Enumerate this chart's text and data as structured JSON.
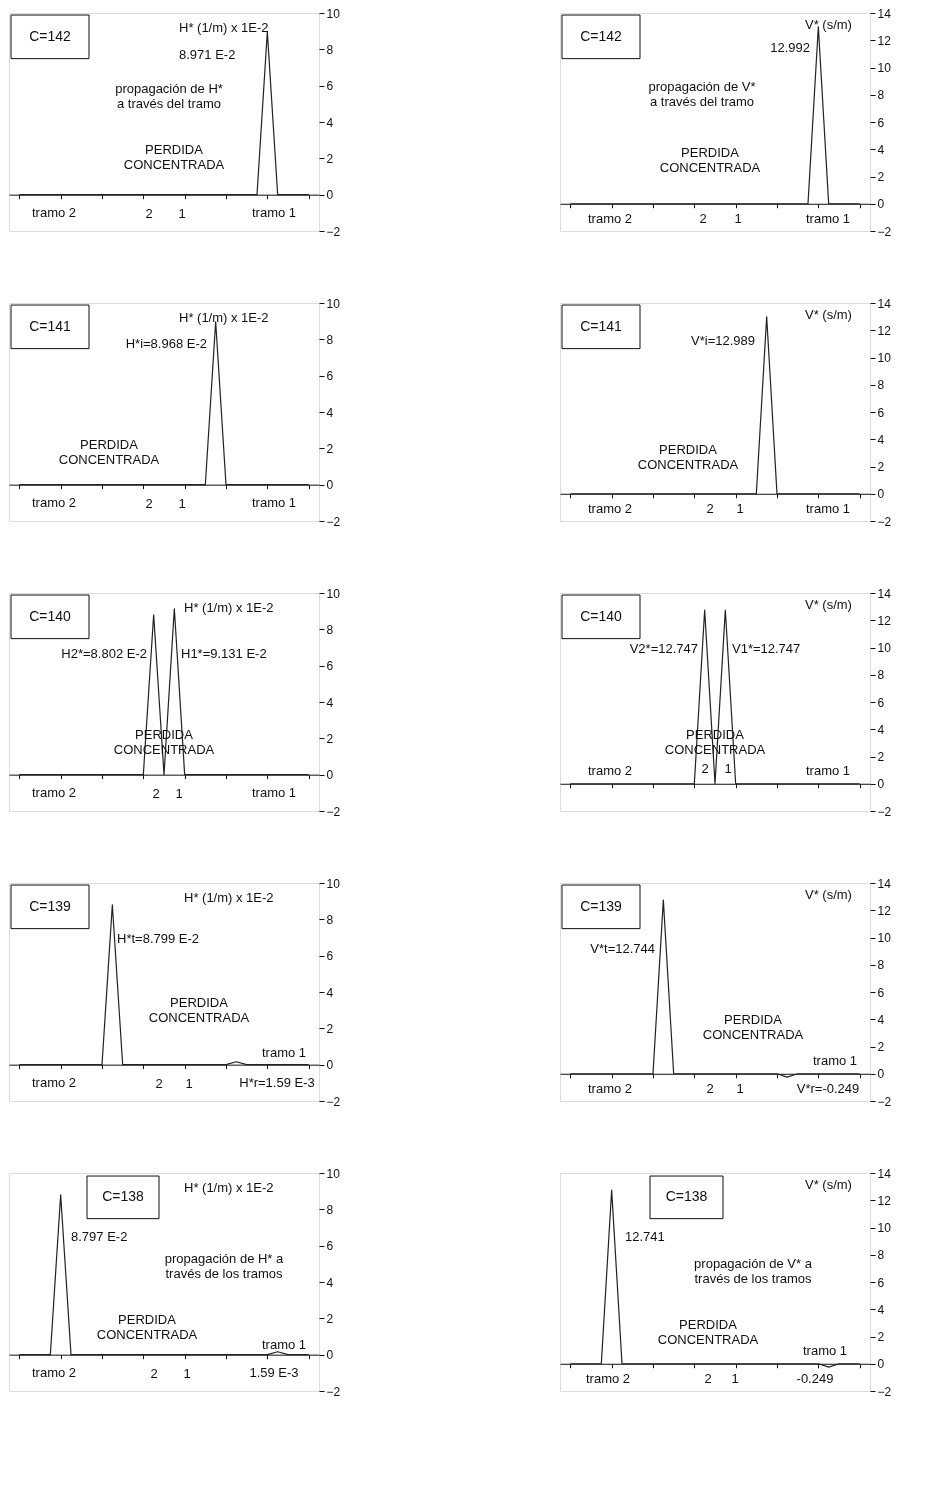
{
  "chart_data": [
    {
      "type": "line",
      "title": "C=142",
      "ylabel": "H* (1/m) x 1E-2",
      "ylim": [
        -2,
        10
      ],
      "yticks": [
        -2,
        0,
        2,
        4,
        6,
        8,
        10
      ],
      "tick_labels": "y",
      "categories": [
        null,
        null,
        null,
        null,
        null,
        null,
        null,
        null,
        null,
        null,
        null,
        null,
        null,
        null,
        null,
        null,
        null,
        null,
        null,
        null,
        null,
        null,
        null,
        null,
        null,
        null,
        null,
        null,
        null
      ],
      "series": [
        {
          "color": "#222222",
          "values": [
            0,
            0,
            0,
            0,
            0,
            0,
            0,
            0,
            0,
            0,
            0,
            0,
            0,
            0,
            0,
            0,
            0,
            0,
            0,
            0,
            0,
            0,
            0,
            0,
            8.971,
            0,
            0,
            0,
            0
          ]
        }
      ],
      "annotations": [
        "8.971 E-2",
        "propagación de H*\na través del tramo",
        "PERDIDA\nCONCENTRADA",
        "tramo 2",
        "2",
        "1",
        "tramo 1"
      ]
    },
    {
      "type": "line",
      "title": "C=142",
      "ylabel": "V* (s/m)",
      "ylim": [
        -2,
        14
      ],
      "yticks": [
        -2,
        0,
        2,
        4,
        6,
        8,
        10,
        12,
        14
      ],
      "tick_labels": "y",
      "categories": [
        null,
        null,
        null,
        null,
        null,
        null,
        null,
        null,
        null,
        null,
        null,
        null,
        null,
        null,
        null,
        null,
        null,
        null,
        null,
        null,
        null,
        null,
        null,
        null,
        null,
        null,
        null,
        null,
        null
      ],
      "series": [
        {
          "color": "#222222",
          "values": [
            0,
            0,
            0,
            0,
            0,
            0,
            0,
            0,
            0,
            0,
            0,
            0,
            0,
            0,
            0,
            0,
            0,
            0,
            0,
            0,
            0,
            0,
            0,
            0,
            12.992,
            0,
            0,
            0,
            0
          ]
        }
      ],
      "annotations": [
        "12.992",
        "propagación de V*\na través del tramo",
        "PERDIDA\nCONCENTRADA",
        "tramo 2",
        "2",
        "1",
        "tramo 1"
      ]
    },
    {
      "type": "line",
      "title": "C=141",
      "ylabel": "H* (1/m) x 1E-2",
      "ylim": [
        -2,
        10
      ],
      "yticks": [
        -2,
        0,
        2,
        4,
        6,
        8,
        10
      ],
      "tick_labels": "y",
      "categories": [
        null,
        null,
        null,
        null,
        null,
        null,
        null,
        null,
        null,
        null,
        null,
        null,
        null,
        null,
        null,
        null,
        null,
        null,
        null,
        null,
        null,
        null,
        null,
        null,
        null,
        null,
        null,
        null,
        null
      ],
      "series": [
        {
          "color": "#222222",
          "values": [
            0,
            0,
            0,
            0,
            0,
            0,
            0,
            0,
            0,
            0,
            0,
            0,
            0,
            0,
            0,
            0,
            0,
            0,
            0,
            8.968,
            0,
            0,
            0,
            0,
            0,
            0,
            0,
            0,
            0
          ]
        }
      ],
      "annotations": [
        "H*i=8.968 E-2",
        "PERDIDA\nCONCENTRADA",
        "tramo 2",
        "2",
        "1",
        "tramo 1"
      ]
    },
    {
      "type": "line",
      "title": "C=141",
      "ylabel": "V* (s/m)",
      "ylim": [
        -2,
        14
      ],
      "yticks": [
        -2,
        0,
        2,
        4,
        6,
        8,
        10,
        12,
        14
      ],
      "tick_labels": "y",
      "categories": [
        null,
        null,
        null,
        null,
        null,
        null,
        null,
        null,
        null,
        null,
        null,
        null,
        null,
        null,
        null,
        null,
        null,
        null,
        null,
        null,
        null,
        null,
        null,
        null,
        null,
        null,
        null,
        null,
        null
      ],
      "series": [
        {
          "color": "#222222",
          "values": [
            0,
            0,
            0,
            0,
            0,
            0,
            0,
            0,
            0,
            0,
            0,
            0,
            0,
            0,
            0,
            0,
            0,
            0,
            0,
            12.989,
            0,
            0,
            0,
            0,
            0,
            0,
            0,
            0,
            0
          ]
        }
      ],
      "annotations": [
        "V*i=12.989",
        "PERDIDA\nCONCENTRADA",
        "tramo 2",
        "2",
        "1",
        "tramo 1"
      ]
    },
    {
      "type": "line",
      "title": "C=140",
      "ylabel": "H* (1/m) x 1E-2",
      "ylim": [
        -2,
        10
      ],
      "yticks": [
        -2,
        0,
        2,
        4,
        6,
        8,
        10
      ],
      "tick_labels": "y",
      "categories": [
        null,
        null,
        null,
        null,
        null,
        null,
        null,
        null,
        null,
        null,
        null,
        null,
        null,
        null,
        null,
        null,
        null,
        null,
        null,
        null,
        null,
        null,
        null,
        null,
        null,
        null,
        null,
        null,
        null
      ],
      "series": [
        {
          "color": "#222222",
          "values": [
            0,
            0,
            0,
            0,
            0,
            0,
            0,
            0,
            0,
            0,
            0,
            0,
            0,
            8.802,
            0,
            9.131,
            0,
            0,
            0,
            0,
            0,
            0,
            0,
            0,
            0,
            0,
            0,
            0,
            0
          ]
        }
      ],
      "annotations": [
        "H2*=8.802 E-2",
        "H1*=9.131 E-2",
        "PERDIDA\nCONCENTRADA",
        "tramo 2",
        "2",
        "1",
        "tramo 1"
      ]
    },
    {
      "type": "line",
      "title": "C=140",
      "ylabel": "V* (s/m)",
      "ylim": [
        -2,
        14
      ],
      "yticks": [
        -2,
        0,
        2,
        4,
        6,
        8,
        10,
        12,
        14
      ],
      "tick_labels": "y",
      "categories": [
        null,
        null,
        null,
        null,
        null,
        null,
        null,
        null,
        null,
        null,
        null,
        null,
        null,
        null,
        null,
        null,
        null,
        null,
        null,
        null,
        null,
        null,
        null,
        null,
        null,
        null,
        null,
        null,
        null
      ],
      "series": [
        {
          "color": "#222222",
          "values": [
            0,
            0,
            0,
            0,
            0,
            0,
            0,
            0,
            0,
            0,
            0,
            0,
            0,
            12.747,
            0,
            12.747,
            0,
            0,
            0,
            0,
            0,
            0,
            0,
            0,
            0,
            0,
            0,
            0,
            0
          ]
        }
      ],
      "annotations": [
        "V2*=12.747",
        "V1*=12.747",
        "PERDIDA\nCONCENTRADA",
        "tramo 2",
        "2",
        "1",
        "tramo 1"
      ]
    },
    {
      "type": "line",
      "title": "C=139",
      "ylabel": "H* (1/m) x 1E-2",
      "ylim": [
        -2,
        10
      ],
      "yticks": [
        -2,
        0,
        2,
        4,
        6,
        8,
        10
      ],
      "tick_labels": "y",
      "categories": [
        null,
        null,
        null,
        null,
        null,
        null,
        null,
        null,
        null,
        null,
        null,
        null,
        null,
        null,
        null,
        null,
        null,
        null,
        null,
        null,
        null,
        null,
        null,
        null,
        null,
        null,
        null,
        null,
        null
      ],
      "series": [
        {
          "color": "#222222",
          "values": [
            0,
            0,
            0,
            0,
            0,
            0,
            0,
            0,
            0,
            8.799,
            0,
            0,
            0,
            0,
            0,
            0,
            0,
            0,
            0,
            0,
            0,
            0.159,
            0,
            0,
            0,
            0,
            0,
            0,
            0
          ]
        }
      ],
      "annotations": [
        "H*t=8.799 E-2",
        "PERDIDA\nCONCENTRADA",
        "tramo 1",
        "H*r=1.59 E-3",
        "tramo 2",
        "2",
        "1"
      ]
    },
    {
      "type": "line",
      "title": "C=139",
      "ylabel": "V* (s/m)",
      "ylim": [
        -2,
        14
      ],
      "yticks": [
        -2,
        0,
        2,
        4,
        6,
        8,
        10,
        12,
        14
      ],
      "tick_labels": "y",
      "categories": [
        null,
        null,
        null,
        null,
        null,
        null,
        null,
        null,
        null,
        null,
        null,
        null,
        null,
        null,
        null,
        null,
        null,
        null,
        null,
        null,
        null,
        null,
        null,
        null,
        null,
        null,
        null,
        null,
        null
      ],
      "series": [
        {
          "color": "#222222",
          "values": [
            0,
            0,
            0,
            0,
            0,
            0,
            0,
            0,
            0,
            12.744,
            0,
            0,
            0,
            0,
            0,
            0,
            0,
            0,
            0,
            0,
            0,
            -0.249,
            0,
            0,
            0,
            0,
            0,
            0,
            0
          ]
        }
      ],
      "annotations": [
        "V*t=12.744",
        "PERDIDA\nCONCENTRADA",
        "tramo 1",
        "V*r=-0.249",
        "tramo 2",
        "2",
        "1"
      ]
    },
    {
      "type": "line",
      "title": "C=138",
      "ylabel": "H* (1/m) x 1E-2",
      "ylim": [
        -2,
        10
      ],
      "yticks": [
        -2,
        0,
        2,
        4,
        6,
        8,
        10
      ],
      "tick_labels": "y",
      "categories": [
        null,
        null,
        null,
        null,
        null,
        null,
        null,
        null,
        null,
        null,
        null,
        null,
        null,
        null,
        null,
        null,
        null,
        null,
        null,
        null,
        null,
        null,
        null,
        null,
        null,
        null,
        null,
        null,
        null
      ],
      "series": [
        {
          "color": "#222222",
          "values": [
            0,
            0,
            0,
            0,
            8.797,
            0,
            0,
            0,
            0,
            0,
            0,
            0,
            0,
            0,
            0,
            0,
            0,
            0,
            0,
            0,
            0,
            0,
            0,
            0,
            0,
            0.159,
            0,
            0,
            0
          ]
        }
      ],
      "annotations": [
        "8.797 E-2",
        "propagación de H* a\ntravés de los tramos",
        "PERDIDA\nCONCENTRADA",
        "tramo 1",
        "1.59 E-3",
        "tramo 2",
        "2",
        "1"
      ]
    },
    {
      "type": "line",
      "title": "C=138",
      "ylabel": "V* (s/m)",
      "ylim": [
        -2,
        14
      ],
      "yticks": [
        -2,
        0,
        2,
        4,
        6,
        8,
        10,
        12,
        14
      ],
      "tick_labels": "y",
      "categories": [
        null,
        null,
        null,
        null,
        null,
        null,
        null,
        null,
        null,
        null,
        null,
        null,
        null,
        null,
        null,
        null,
        null,
        null,
        null,
        null,
        null,
        null,
        null,
        null,
        null,
        null,
        null,
        null,
        null
      ],
      "series": [
        {
          "color": "#222222",
          "values": [
            0,
            0,
            0,
            0,
            12.741,
            0,
            0,
            0,
            0,
            0,
            0,
            0,
            0,
            0,
            0,
            0,
            0,
            0,
            0,
            0,
            0,
            0,
            0,
            0,
            0,
            -0.249,
            0,
            0,
            0
          ]
        }
      ],
      "annotations": [
        "12.741",
        "propagación de V* a\ntravés de los tramos",
        "PERDIDA\nCONCENTRADA",
        "tramo 1",
        "-0.249",
        "tramo 2",
        "2",
        "1"
      ]
    }
  ]
}
